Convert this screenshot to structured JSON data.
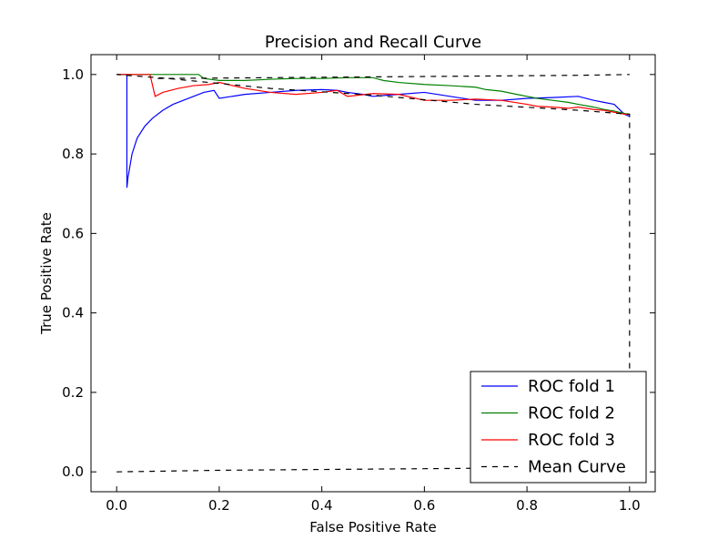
{
  "chart_data": {
    "type": "line",
    "title": "Precision and Recall Curve",
    "xlabel": "False Positive Rate",
    "ylabel": "True Positive Rate",
    "xlim": [
      -0.05,
      1.05
    ],
    "ylim": [
      -0.05,
      1.05
    ],
    "x_ticks": [
      "0.0",
      "0.2",
      "0.4",
      "0.6",
      "0.8",
      "1.0"
    ],
    "y_ticks": [
      "0.0",
      "0.2",
      "0.4",
      "0.6",
      "0.8",
      "1.0"
    ],
    "x_tick_values": [
      0.0,
      0.2,
      0.4,
      0.6,
      0.8,
      1.0
    ],
    "y_tick_values": [
      0.0,
      0.2,
      0.4,
      0.6,
      0.8,
      1.0
    ],
    "grid": false,
    "legend_position": "lower-right",
    "series": [
      {
        "name": "ROC fold 1",
        "color": "#0000ff",
        "dash": "solid",
        "x": [
          0.0,
          0.02,
          0.02,
          0.022,
          0.03,
          0.04,
          0.055,
          0.07,
          0.09,
          0.11,
          0.13,
          0.15,
          0.17,
          0.19,
          0.2,
          0.25,
          0.3,
          0.35,
          0.4,
          0.43,
          0.45,
          0.48,
          0.5,
          0.55,
          0.6,
          0.65,
          0.7,
          0.75,
          0.8,
          0.85,
          0.9,
          0.93,
          0.95,
          0.97,
          0.99,
          1.0
        ],
        "y": [
          1.0,
          1.0,
          0.715,
          0.74,
          0.8,
          0.84,
          0.87,
          0.89,
          0.91,
          0.925,
          0.935,
          0.945,
          0.955,
          0.96,
          0.94,
          0.95,
          0.955,
          0.96,
          0.962,
          0.96,
          0.955,
          0.95,
          0.945,
          0.95,
          0.955,
          0.945,
          0.935,
          0.935,
          0.94,
          0.942,
          0.945,
          0.935,
          0.93,
          0.925,
          0.9,
          0.895
        ]
      },
      {
        "name": "ROC fold 2",
        "color": "#008000",
        "dash": "solid",
        "x": [
          0.0,
          0.16,
          0.17,
          0.2,
          0.25,
          0.3,
          0.35,
          0.4,
          0.45,
          0.5,
          0.52,
          0.55,
          0.6,
          0.65,
          0.7,
          0.72,
          0.75,
          0.78,
          0.8,
          0.82,
          0.85,
          0.88,
          0.9,
          0.93,
          0.95,
          0.97,
          0.99,
          1.0
        ],
        "y": [
          1.0,
          1.0,
          0.99,
          0.985,
          0.985,
          0.988,
          0.99,
          0.99,
          0.992,
          0.992,
          0.985,
          0.98,
          0.975,
          0.972,
          0.968,
          0.962,
          0.958,
          0.95,
          0.945,
          0.94,
          0.935,
          0.93,
          0.925,
          0.918,
          0.912,
          0.908,
          0.902,
          0.9
        ]
      },
      {
        "name": "ROC fold 3",
        "color": "#ff0000",
        "dash": "solid",
        "x": [
          0.0,
          0.065,
          0.075,
          0.09,
          0.12,
          0.15,
          0.18,
          0.2,
          0.25,
          0.3,
          0.35,
          0.4,
          0.43,
          0.45,
          0.5,
          0.55,
          0.6,
          0.65,
          0.7,
          0.75,
          0.8,
          0.82,
          0.85,
          0.88,
          0.9,
          0.93,
          0.95,
          0.97,
          0.99,
          1.0
        ],
        "y": [
          1.0,
          1.0,
          0.945,
          0.955,
          0.965,
          0.972,
          0.975,
          0.98,
          0.965,
          0.955,
          0.95,
          0.955,
          0.96,
          0.945,
          0.952,
          0.95,
          0.935,
          0.935,
          0.938,
          0.935,
          0.925,
          0.92,
          0.918,
          0.915,
          0.918,
          0.912,
          0.91,
          0.905,
          0.9,
          0.9
        ]
      },
      {
        "name": "Mean Curve",
        "color": "#000000",
        "dash": "dashed",
        "x": [
          0.0,
          0.1,
          0.2,
          0.3,
          0.4,
          0.5,
          0.6,
          0.7,
          0.8,
          0.9,
          1.0,
          1.0,
          0.9,
          0.7,
          0.5,
          0.3,
          0.1,
          0.0
        ],
        "y": [
          0.0,
          0.002,
          0.004,
          0.005,
          0.006,
          0.007,
          0.008,
          0.009,
          0.01,
          0.011,
          0.012,
          0.9,
          0.91,
          0.925,
          0.948,
          0.965,
          0.99,
          1.0
        ]
      },
      {
        "name": "",
        "color": "#000000",
        "dash": "dashed",
        "x": [
          0.08,
          0.3,
          0.6,
          0.9,
          1.0
        ],
        "y": [
          0.99,
          0.992,
          0.995,
          0.998,
          1.0
        ]
      }
    ]
  }
}
